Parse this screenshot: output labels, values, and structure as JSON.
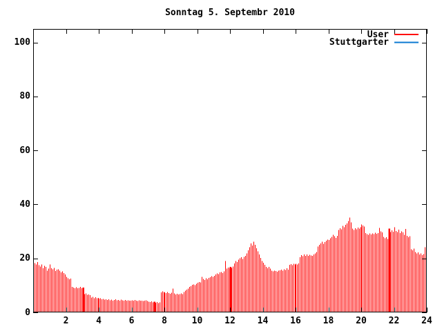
{
  "chart_data": {
    "type": "bar",
    "title": "Sonntag 5. Septembr 2010",
    "xlabel": "",
    "ylabel": "",
    "xlim": [
      0,
      24
    ],
    "ylim": [
      0,
      105
    ],
    "x_ticks": [
      2,
      4,
      6,
      8,
      10,
      12,
      14,
      16,
      18,
      20,
      22,
      24
    ],
    "y_ticks": [
      0,
      20,
      40,
      60,
      80,
      100
    ],
    "grid": false,
    "legend_position": "top-right-inside",
    "sample_interval_minutes": 5,
    "bar_style": "thin vertical impulses",
    "axis_color": "#000000",
    "background_color": "#ffffff",
    "series": [
      {
        "name": "User",
        "color": "#ff0000",
        "values": [
          19.1,
          18.3,
          17.8,
          18.6,
          17.5,
          17.0,
          17.8,
          16.4,
          17.2,
          16.8,
          15.5,
          16.2,
          17.8,
          16.3,
          16.0,
          16.5,
          15.3,
          15.8,
          16.0,
          15.4,
          14.8,
          15.2,
          14.5,
          14.0,
          13.2,
          12.6,
          12.2,
          12.5,
          9.5,
          9.2,
          9.0,
          9.3,
          8.9,
          9.1,
          9.4,
          9.0,
          9.2,
          6.8,
          7.0,
          6.5,
          6.7,
          6.4,
          5.5,
          5.8,
          5.3,
          5.6,
          5.2,
          5.4,
          5.1,
          5.3,
          4.9,
          5.0,
          4.7,
          4.8,
          4.6,
          4.9,
          4.5,
          4.7,
          4.4,
          4.6,
          4.8,
          4.5,
          4.6,
          4.4,
          4.7,
          4.5,
          4.3,
          4.6,
          4.4,
          4.5,
          4.3,
          4.4,
          4.5,
          4.3,
          4.6,
          4.4,
          4.2,
          4.5,
          4.3,
          4.4,
          4.2,
          4.3,
          4.5,
          4.2,
          4.0,
          3.8,
          4.1,
          3.7,
          3.9,
          3.6,
          3.8,
          3.5,
          3.7,
          7.4,
          7.8,
          7.5,
          7.4,
          7.1,
          7.6,
          7.2,
          6.9,
          7.3,
          8.8,
          7.0,
          6.7,
          6.9,
          6.6,
          6.8,
          7.0,
          6.8,
          7.6,
          8.0,
          8.4,
          8.8,
          9.4,
          9.7,
          10.2,
          10.4,
          10.1,
          10.6,
          11.0,
          11.3,
          11.1,
          13.2,
          12.4,
          12.0,
          12.6,
          12.2,
          12.8,
          13.0,
          13.4,
          13.1,
          13.6,
          14.0,
          14.4,
          14.2,
          14.8,
          15.0,
          14.6,
          15.2,
          19.0,
          16.2,
          16.6,
          16.4,
          16.8,
          16.5,
          17.0,
          18.2,
          19.0,
          18.6,
          19.5,
          20.0,
          20.4,
          19.8,
          20.6,
          21.0,
          21.8,
          23.0,
          24.2,
          25.5,
          24.8,
          26.2,
          25.0,
          23.8,
          22.6,
          21.4,
          20.2,
          19.0,
          18.4,
          17.6,
          16.8,
          16.3,
          16.9,
          16.2,
          15.4,
          15.2,
          15.5,
          15.3,
          15.1,
          15.4,
          15.6,
          15.9,
          15.5,
          16.0,
          15.7,
          16.4,
          15.8,
          17.6,
          17.9,
          17.5,
          18.0,
          17.7,
          18.0,
          17.7,
          18.1,
          20.5,
          21.2,
          20.8,
          21.4,
          21.0,
          21.5,
          20.9,
          21.3,
          21.1,
          21.0,
          21.4,
          21.8,
          22.4,
          24.4,
          25.0,
          25.6,
          26.2,
          25.4,
          26.0,
          26.6,
          27.0,
          26.8,
          27.4,
          28.0,
          28.8,
          28.2,
          27.6,
          28.4,
          30.5,
          31.2,
          30.8,
          32.0,
          31.6,
          32.4,
          33.0,
          33.8,
          35.1,
          33.4,
          31.0,
          30.5,
          31.2,
          30.8,
          31.4,
          31.0,
          31.6,
          32.6,
          32.2,
          31.8,
          29.4,
          29.0,
          28.8,
          29.2,
          28.9,
          29.3,
          29.0,
          29.5,
          29.1,
          29.4,
          31.3,
          30.0,
          29.6,
          28.0,
          27.5,
          27.8,
          27.2,
          31.0,
          29.8,
          30.4,
          29.9,
          31.5,
          30.2,
          29.8,
          30.6,
          29.4,
          30.0,
          29.6,
          28.8,
          30.9,
          28.4,
          27.8,
          28.2,
          23.4,
          23.0,
          23.6,
          22.4,
          21.8,
          22.2,
          21.4,
          21.9,
          21.2,
          21.6,
          24.2,
          24.4
        ],
        "wide_bar_indices": [
          36,
          88,
          144,
          260
        ]
      },
      {
        "name": "Stuttgarter",
        "color": "#0a78d2",
        "values": [],
        "visible_in_plot": false
      }
    ]
  }
}
